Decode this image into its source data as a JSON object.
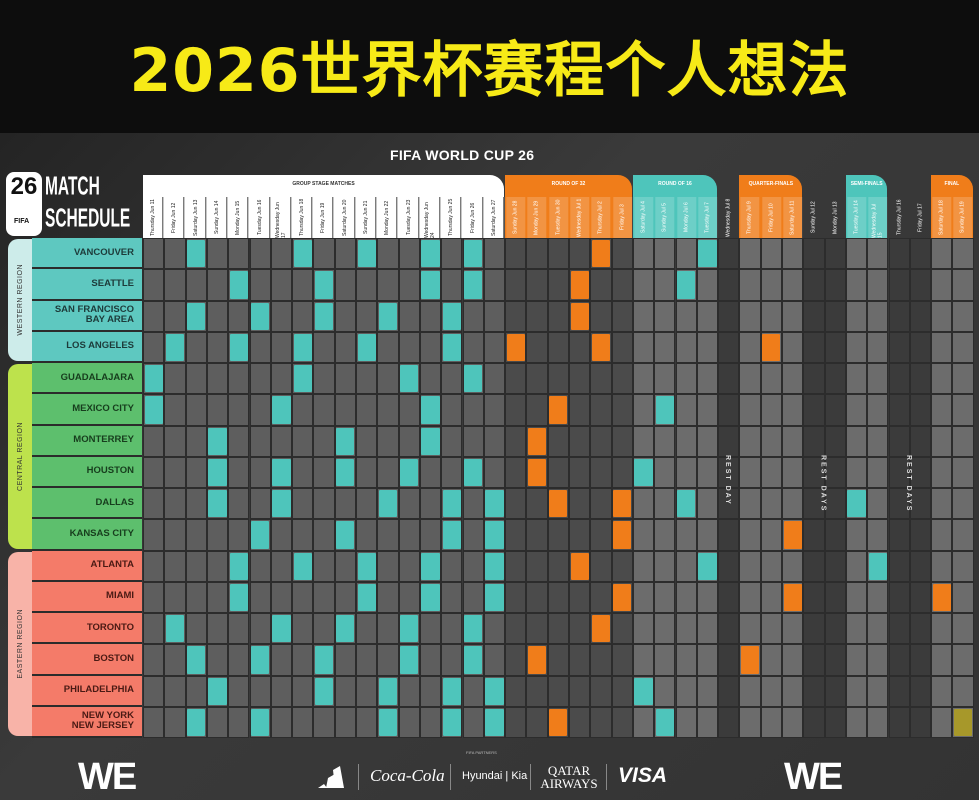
{
  "banner": {
    "title": "2026世界杯赛程个人想法",
    "title_color": "#f7ea17"
  },
  "header": {
    "tournament": "FIFA WORLD CUP 26",
    "logo_number": "26",
    "logo_fifa": "FIFA",
    "logo_line1": "MATCH",
    "logo_line2": "SCHEDULE"
  },
  "colors": {
    "group": "#4ec5bb",
    "round_of_32": "#f07d1a",
    "round_of_16": "#4ec5bb",
    "quarter_finals": "#f07d1a",
    "semi_finals": "#4ec5bb",
    "final": "#f07d1a",
    "final_match": "#a7982a"
  },
  "stages": [
    {
      "id": "group",
      "label": "GROUP STAGE MATCHES"
    },
    {
      "id": "round_of_32",
      "label": "ROUND OF 32"
    },
    {
      "id": "round_of_16",
      "label": "ROUND OF 16"
    },
    {
      "id": "quarter_finals",
      "label": "QUARTER-FINALS"
    },
    {
      "id": "semi_finals",
      "label": "SEMI-FINALS"
    },
    {
      "id": "final",
      "label": "FINAL"
    }
  ],
  "rest_labels": [
    "REST DAY",
    "REST DAYS",
    "REST DAYS"
  ],
  "days": [
    {
      "date": "Jun 11",
      "weekday": "Thursday",
      "stage": "group"
    },
    {
      "date": "Jun 12",
      "weekday": "Friday",
      "stage": "group"
    },
    {
      "date": "Jun 13",
      "weekday": "Saturday",
      "stage": "group"
    },
    {
      "date": "Jun 14",
      "weekday": "Sunday",
      "stage": "group"
    },
    {
      "date": "Jun 15",
      "weekday": "Monday",
      "stage": "group"
    },
    {
      "date": "Jun 16",
      "weekday": "Tuesday",
      "stage": "group"
    },
    {
      "date": "Jun 17",
      "weekday": "Wednesday",
      "stage": "group"
    },
    {
      "date": "Jun 18",
      "weekday": "Thursday",
      "stage": "group"
    },
    {
      "date": "Jun 19",
      "weekday": "Friday",
      "stage": "group"
    },
    {
      "date": "Jun 20",
      "weekday": "Saturday",
      "stage": "group"
    },
    {
      "date": "Jun 21",
      "weekday": "Sunday",
      "stage": "group"
    },
    {
      "date": "Jun 22",
      "weekday": "Monday",
      "stage": "group"
    },
    {
      "date": "Jun 23",
      "weekday": "Tuesday",
      "stage": "group"
    },
    {
      "date": "Jun 24",
      "weekday": "Wednesday",
      "stage": "group"
    },
    {
      "date": "Jun 25",
      "weekday": "Thursday",
      "stage": "group"
    },
    {
      "date": "Jun 26",
      "weekday": "Friday",
      "stage": "group"
    },
    {
      "date": "Jun 27",
      "weekday": "Saturday",
      "stage": "group"
    },
    {
      "date": "Jun 28",
      "weekday": "Sunday",
      "stage": "round_of_32"
    },
    {
      "date": "Jun 29",
      "weekday": "Monday",
      "stage": "round_of_32"
    },
    {
      "date": "Jun 30",
      "weekday": "Tuesday",
      "stage": "round_of_32"
    },
    {
      "date": "Jul 1",
      "weekday": "Wednesday",
      "stage": "round_of_32"
    },
    {
      "date": "Jul 2",
      "weekday": "Thursday",
      "stage": "round_of_32"
    },
    {
      "date": "Jul 3",
      "weekday": "Friday",
      "stage": "round_of_32"
    },
    {
      "date": "Jul 4",
      "weekday": "Saturday",
      "stage": "round_of_16"
    },
    {
      "date": "Jul 5",
      "weekday": "Sunday",
      "stage": "round_of_16"
    },
    {
      "date": "Jul 6",
      "weekday": "Monday",
      "stage": "round_of_16"
    },
    {
      "date": "Jul 7",
      "weekday": "Tuesday",
      "stage": "round_of_16"
    },
    {
      "date": "Jul 8",
      "weekday": "Wednesday",
      "stage": "rest"
    },
    {
      "date": "Jul 9",
      "weekday": "Thursday",
      "stage": "quarter_finals"
    },
    {
      "date": "Jul 10",
      "weekday": "Friday",
      "stage": "quarter_finals"
    },
    {
      "date": "Jul 11",
      "weekday": "Saturday",
      "stage": "quarter_finals"
    },
    {
      "date": "Jul 12",
      "weekday": "Sunday",
      "stage": "rest"
    },
    {
      "date": "Jul 13",
      "weekday": "Monday",
      "stage": "rest"
    },
    {
      "date": "Jul 14",
      "weekday": "Tuesday",
      "stage": "semi_finals"
    },
    {
      "date": "Jul 15",
      "weekday": "Wednesday",
      "stage": "semi_finals"
    },
    {
      "date": "Jul 16",
      "weekday": "Thursday",
      "stage": "rest"
    },
    {
      "date": "Jul 17",
      "weekday": "Friday",
      "stage": "rest"
    },
    {
      "date": "Jul 18",
      "weekday": "Saturday",
      "stage": "final"
    },
    {
      "date": "Jul 19",
      "weekday": "Sunday",
      "stage": "final"
    }
  ],
  "regions": [
    {
      "name": "WESTERN REGION",
      "color": "#5ec8c0",
      "bar_color": "#cdecea",
      "cities": [
        {
          "name": "VANCOUVER",
          "matches": [
            "Jun 13",
            "Jun 18",
            "Jun 21",
            "Jun 24",
            "Jun 26",
            "Jul 2",
            "Jul 7"
          ]
        },
        {
          "name": "SEATTLE",
          "matches": [
            "Jun 15",
            "Jun 19",
            "Jun 24",
            "Jun 26",
            "Jul 1",
            "Jul 6"
          ]
        },
        {
          "name": "SAN FRANCISCO\nBAY AREA",
          "matches": [
            "Jun 13",
            "Jun 16",
            "Jun 19",
            "Jun 22",
            "Jun 25",
            "Jul 1"
          ]
        },
        {
          "name": "LOS ANGELES",
          "matches": [
            "Jun 12",
            "Jun 15",
            "Jun 18",
            "Jun 21",
            "Jun 25",
            "Jun 28",
            "Jul 2",
            "Jul 10"
          ]
        }
      ]
    },
    {
      "name": "CENTRAL REGION",
      "color": "#5dbf6d",
      "bar_color": "#bde24c",
      "cities": [
        {
          "name": "GUADALAJARA",
          "matches": [
            "Jun 11",
            "Jun 18",
            "Jun 23",
            "Jun 26"
          ]
        },
        {
          "name": "MEXICO CITY",
          "matches": [
            "Jun 11",
            "Jun 17",
            "Jun 24",
            "Jun 30",
            "Jul 5"
          ]
        },
        {
          "name": "MONTERREY",
          "matches": [
            "Jun 14",
            "Jun 20",
            "Jun 24",
            "Jun 29"
          ]
        },
        {
          "name": "HOUSTON",
          "matches": [
            "Jun 14",
            "Jun 17",
            "Jun 20",
            "Jun 23",
            "Jun 26",
            "Jun 29",
            "Jul 4"
          ]
        },
        {
          "name": "DALLAS",
          "matches": [
            "Jun 14",
            "Jun 17",
            "Jun 22",
            "Jun 25",
            "Jun 27",
            "Jun 30",
            "Jul 3",
            "Jul 6",
            "Jul 14"
          ]
        },
        {
          "name": "KANSAS CITY",
          "matches": [
            "Jun 16",
            "Jun 20",
            "Jun 25",
            "Jun 27",
            "Jul 3",
            "Jul 11"
          ]
        }
      ]
    },
    {
      "name": "EASTERN REGION",
      "color": "#f47b69",
      "bar_color": "#f8b3a8",
      "cities": [
        {
          "name": "ATLANTA",
          "matches": [
            "Jun 15",
            "Jun 18",
            "Jun 21",
            "Jun 24",
            "Jun 27",
            "Jul 1",
            "Jul 7",
            "Jul 15"
          ]
        },
        {
          "name": "MIAMI",
          "matches": [
            "Jun 15",
            "Jun 21",
            "Jun 24",
            "Jun 27",
            "Jul 3",
            "Jul 11",
            "Jul 18"
          ]
        },
        {
          "name": "TORONTO",
          "matches": [
            "Jun 12",
            "Jun 17",
            "Jun 20",
            "Jun 23",
            "Jun 26",
            "Jul 2"
          ]
        },
        {
          "name": "BOSTON",
          "matches": [
            "Jun 13",
            "Jun 16",
            "Jun 19",
            "Jun 23",
            "Jun 26",
            "Jun 29",
            "Jul 9"
          ]
        },
        {
          "name": "PHILADELPHIA",
          "matches": [
            "Jun 14",
            "Jun 19",
            "Jun 22",
            "Jun 25",
            "Jun 27",
            "Jul 4"
          ]
        },
        {
          "name": "NEW YORK\nNEW JERSEY",
          "matches": [
            "Jun 13",
            "Jun 16",
            "Jun 22",
            "Jun 25",
            "Jun 27",
            "Jun 30",
            "Jul 5",
            "Jul 19"
          ]
        }
      ]
    }
  ],
  "footer": {
    "we_are_left": "WE",
    "we_are_right": "WE",
    "partners_label": "FIFA PARTNERS",
    "sponsors": [
      "adidas",
      "Coca-Cola",
      "Hyundai | Kia",
      "QATAR AIRWAYS",
      "VISA"
    ]
  }
}
